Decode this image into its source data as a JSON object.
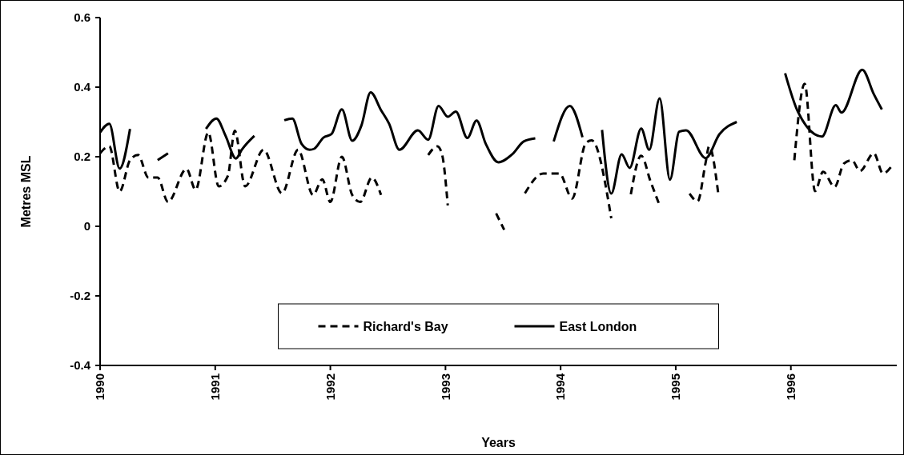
{
  "chart_data": {
    "type": "line",
    "xlabel": "Years",
    "ylabel": "Metres MSL",
    "xlim": [
      1990,
      1996.92
    ],
    "xticks": [
      1990,
      1991,
      1992,
      1993,
      1994,
      1995,
      1996
    ],
    "ylim": [
      -0.4,
      0.6
    ],
    "yticks": [
      -0.4,
      -0.2,
      0,
      0.2,
      0.4,
      0.6
    ],
    "grid": false,
    "legend": "bottom",
    "series": [
      {
        "name": "Richard's Bay",
        "color": "#000000",
        "line_style": "dashed",
        "x": [
          1990,
          1990.08,
          1990.17,
          1990.26,
          1990.33,
          1990.42,
          1990.5,
          1990.59,
          1990.75,
          1990.83,
          1990.94,
          1991.03,
          1991.11,
          1991.17,
          1991.26,
          1991.42,
          1991.58,
          1991.72,
          1991.85,
          1991.93,
          1992,
          1992.1,
          1992.19,
          1992.26,
          1992.36,
          1992.44
        ],
        "values": [
          0.21,
          0.23,
          0.1,
          0.19,
          0.205,
          0.14,
          0.14,
          0.07,
          0.165,
          0.105,
          0.27,
          0.115,
          0.145,
          0.275,
          0.115,
          0.22,
          0.095,
          0.22,
          0.09,
          0.135,
          0.07,
          0.2,
          0.09,
          0.07,
          0.14,
          0.09
        ]
      },
      {
        "color": "#000000",
        "line_style": "dashed",
        "x": [
          1992.85,
          1992.93,
          1992.97,
          1993.02
        ],
        "values": [
          0.205,
          0.23,
          0.207,
          0.06
        ]
      },
      {
        "color": "#000000",
        "line_style": "dashed",
        "x": [
          1993.44,
          1993.51
        ],
        "values": [
          0.037,
          -0.01
        ]
      },
      {
        "color": "#000000",
        "line_style": "dashed",
        "x": [
          1993.69,
          1993.85,
          1993.99,
          1994.1,
          1994.22,
          1994.27,
          1994.44
        ],
        "values": [
          0.095,
          0.152,
          0.152,
          0.08,
          0.24,
          0.247,
          0.023
        ]
      },
      {
        "color": "#000000",
        "line_style": "dashed",
        "x": [
          1994.61,
          1994.7,
          1994.78,
          1994.86
        ],
        "values": [
          0.092,
          0.203,
          0.13,
          0.06
        ]
      },
      {
        "color": "#000000",
        "line_style": "dashed",
        "x": [
          1995.12,
          1995.19,
          1995.26,
          1995.29,
          1995.37
        ],
        "values": [
          0.094,
          0.072,
          0.184,
          0.23,
          0.092
        ]
      },
      {
        "color": "#000000",
        "line_style": "dashed",
        "x": [
          1996.03,
          1996.12,
          1996.21,
          1996.28,
          1996.38,
          1996.46,
          1996.53,
          1996.6,
          1996.72,
          1996.8,
          1996.89
        ],
        "values": [
          0.19,
          0.41,
          0.101,
          0.157,
          0.113,
          0.18,
          0.19,
          0.159,
          0.21,
          0.152,
          0.18
        ]
      },
      {
        "name": "East London",
        "color": "#000000",
        "line_style": "solid",
        "x": [
          1990,
          1990.08,
          1990.17,
          1990.26
        ],
        "values": [
          0.27,
          0.295,
          0.166,
          0.28
        ]
      },
      {
        "color": "#000000",
        "line_style": "solid",
        "x": [
          1990.5,
          1990.59
        ],
        "values": [
          0.19,
          0.21
        ]
      },
      {
        "color": "#000000",
        "line_style": "solid",
        "x": [
          1990.92,
          1991.01,
          1991.09,
          1991.18,
          1991.23,
          1991.34
        ],
        "values": [
          0.28,
          0.31,
          0.26,
          0.195,
          0.22,
          0.26
        ]
      },
      {
        "color": "#000000",
        "line_style": "solid",
        "x": [
          1991.6,
          1991.67,
          1991.75,
          1991.82,
          1991.86,
          1991.94,
          1992.01,
          1992.1,
          1992.19,
          1992.27,
          1992.35,
          1992.44,
          1992.51,
          1992.6,
          1992.76,
          1992.85,
          1992.94,
          1993.02,
          1993.09,
          1993.19,
          1993.27,
          1993.35,
          1993.46,
          1993.58,
          1993.68,
          1993.78
        ],
        "values": [
          0.305,
          0.31,
          0.237,
          0.22,
          0.223,
          0.255,
          0.265,
          0.336,
          0.246,
          0.29,
          0.385,
          0.334,
          0.295,
          0.22,
          0.276,
          0.249,
          0.346,
          0.315,
          0.33,
          0.254,
          0.304,
          0.237,
          0.184,
          0.207,
          0.244,
          0.253
        ]
      },
      {
        "color": "#000000",
        "line_style": "solid",
        "x": [
          1993.94,
          1994.08,
          1994.19
        ],
        "values": [
          0.244,
          0.346,
          0.256
        ]
      },
      {
        "color": "#000000",
        "line_style": "solid",
        "x": [
          1994.36,
          1994.44,
          1994.53,
          1994.6,
          1994.7,
          1994.77,
          1994.86,
          1994.95,
          1995.03,
          1995.09,
          1995.26,
          1995.38,
          1995.53
        ],
        "values": [
          0.277,
          0.094,
          0.207,
          0.168,
          0.281,
          0.22,
          0.368,
          0.134,
          0.272,
          0.276,
          0.196,
          0.265,
          0.3
        ]
      },
      {
        "color": "#000000",
        "line_style": "solid",
        "x": [
          1995.95,
          1996.06,
          1996.27,
          1996.39,
          1996.44,
          1996.62,
          1996.72,
          1996.79
        ],
        "values": [
          0.44,
          0.33,
          0.258,
          0.348,
          0.327,
          0.45,
          0.38,
          0.336
        ]
      }
    ]
  }
}
